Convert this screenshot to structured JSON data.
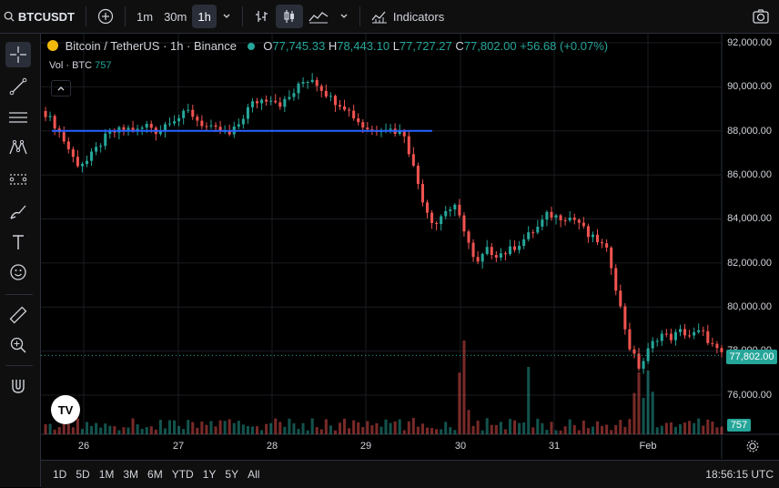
{
  "toolbar": {
    "symbol": "BTCUSDT",
    "intervals": [
      "1m",
      "30m",
      "1h"
    ],
    "active_interval": "1h",
    "indicators_label": "Indicators"
  },
  "legend": {
    "name": "Bitcoin / TetherUS · 1h · Binance",
    "o_label": "O",
    "o_val": "77,745.33",
    "h_label": "H",
    "h_val": "78,443.10",
    "l_label": "L",
    "l_val": "77,727.27",
    "c_label": "C",
    "c_val": "77,802.00",
    "change": "+56.68 (+0.07%)"
  },
  "volume": {
    "label": "Vol · BTC",
    "value": "757"
  },
  "price_axis": [
    "92,000.00",
    "90,000.00",
    "88,000.00",
    "86,000.00",
    "84,000.00",
    "82,000.00",
    "80,000.00",
    "78,000.00",
    "76,000.00"
  ],
  "current_price": "77,802.00",
  "volume_tag": "757",
  "time_axis": [
    "26",
    "27",
    "28",
    "29",
    "30",
    "31",
    "Feb"
  ],
  "ranges": [
    "1D",
    "5D",
    "1M",
    "3M",
    "6M",
    "YTD",
    "1Y",
    "5Y",
    "All"
  ],
  "clock": "18:56:15 UTC",
  "colors": {
    "up": "#26a69a",
    "down": "#ef5350",
    "hline": "#2962ff"
  },
  "chart_data": {
    "type": "candlestick",
    "horizontal_line": 88000,
    "ylim": [
      75000,
      92500
    ],
    "close_path": [
      88800,
      88200,
      87400,
      86500,
      86600,
      87200,
      87800,
      88000,
      88100,
      88000,
      88300,
      87900,
      88500,
      88600,
      88900,
      88400,
      88100,
      88000,
      87800,
      88400,
      89200,
      89400,
      89500,
      89200,
      89600,
      90200,
      90400,
      89900,
      89400,
      89200,
      88700,
      88200,
      88000,
      88200,
      88000,
      87900,
      86200,
      84600,
      83700,
      84400,
      84500,
      83400,
      81800,
      82600,
      82400,
      82500,
      82800,
      83200,
      83600,
      84200,
      84100,
      84100,
      83900,
      83200,
      83000,
      82400,
      80200,
      78200,
      77200,
      78200,
      78800,
      78600,
      78900,
      78700,
      78900,
      78300,
      77800
    ]
  }
}
